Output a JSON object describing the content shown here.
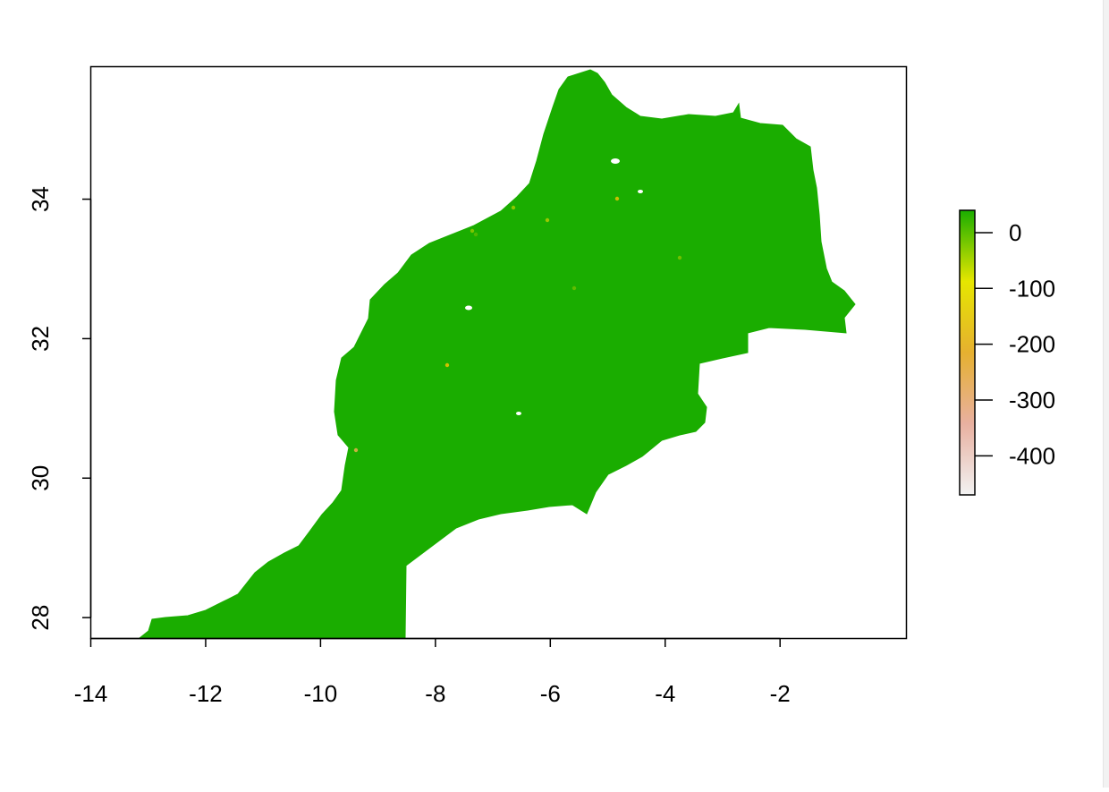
{
  "chart_data": {
    "type": "heatmap",
    "title": "",
    "xlabel": "",
    "ylabel": "",
    "xlim": [
      -14,
      0.2
    ],
    "ylim": [
      27.7,
      35.9
    ],
    "x_ticks": [
      -14,
      -12,
      -10,
      -8,
      -6,
      -4,
      -2
    ],
    "x_tick_labels": [
      "-14",
      "-12",
      "-10",
      "-8",
      "-6",
      "-4",
      "-2"
    ],
    "y_ticks": [
      28,
      30,
      32,
      34
    ],
    "y_tick_labels": [
      "28",
      "30",
      "32",
      "34"
    ],
    "legend": {
      "placement": "right",
      "range": [
        -470,
        40
      ],
      "ticks": [
        0,
        -100,
        -200,
        -300,
        -400
      ],
      "tick_labels": [
        "0",
        "-100",
        "-200",
        "-300",
        "-400"
      ],
      "colors": [
        "#f2f2f2",
        "#e8b0a0",
        "#e6b030",
        "#e6e600",
        "#1aad00"
      ]
    },
    "dominant_color": "#1aad00",
    "dominant_value": 0
  }
}
